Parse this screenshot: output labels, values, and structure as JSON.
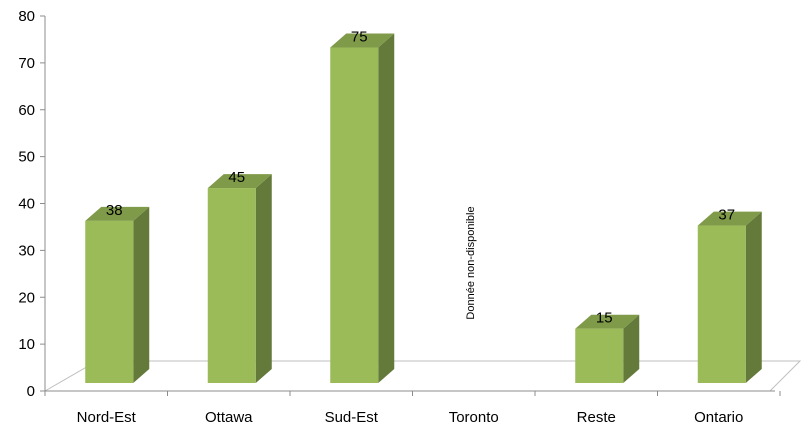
{
  "chart_data": {
    "type": "bar",
    "title": "",
    "xlabel": "",
    "ylabel": "",
    "ylim": [
      0,
      80
    ],
    "yticks": [
      0,
      10,
      20,
      30,
      40,
      50,
      60,
      70,
      80
    ],
    "categories": [
      "Nord-Est",
      "Ottawa",
      "Sud-Est",
      "Toronto",
      "Reste",
      "Ontario"
    ],
    "values": [
      38,
      45,
      75,
      null,
      15,
      37
    ],
    "data_labels": [
      "38",
      "45",
      "75",
      "Donnée non-disponible",
      "15",
      "37"
    ],
    "grid": false,
    "legend": "none",
    "colors": {
      "bar_front": "#9bbb59",
      "bar_side": "#647a3a",
      "bar_top": "#7f9a48",
      "axis": "#8c8c8c"
    }
  }
}
